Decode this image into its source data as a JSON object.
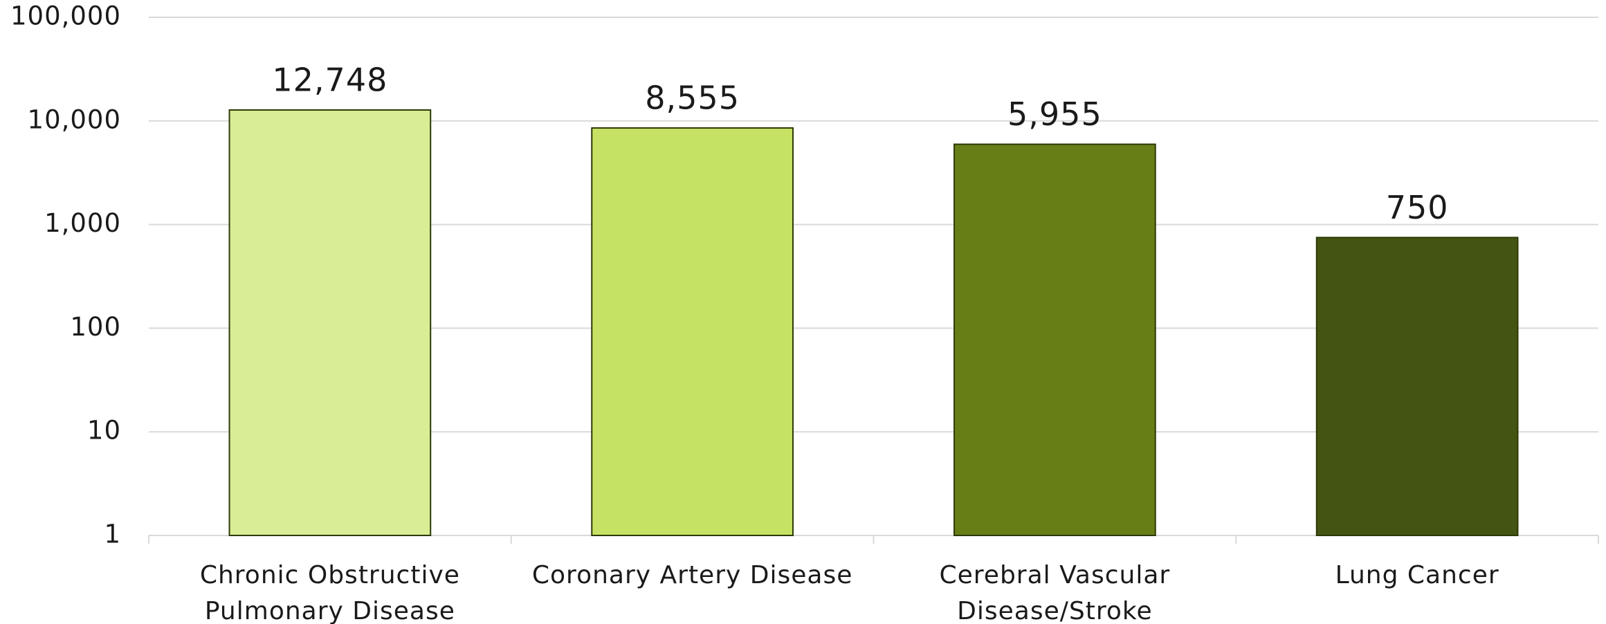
{
  "chart_data": {
    "type": "bar",
    "categories": [
      "Chronic Obstructive Pulmonary Disease",
      "Coronary Artery Disease",
      "Cerebral Vascular Disease/Stroke",
      "Lung Cancer"
    ],
    "values": [
      12748,
      8555,
      5955,
      750
    ],
    "value_labels": [
      "12,748",
      "8,555",
      "5,955",
      "750"
    ],
    "colors": [
      "#d8ed96",
      "#c6e264",
      "#677e16",
      "#435413"
    ],
    "log_scale": true,
    "ylim": [
      1,
      100000
    ],
    "yticks": [
      1,
      10,
      100,
      {
        "value": 1000,
        "label": "1,000"
      },
      {
        "value": 10000,
        "label": "10,000"
      },
      {
        "value": 100000,
        "label": "100,000"
      }
    ],
    "grid": true
  }
}
